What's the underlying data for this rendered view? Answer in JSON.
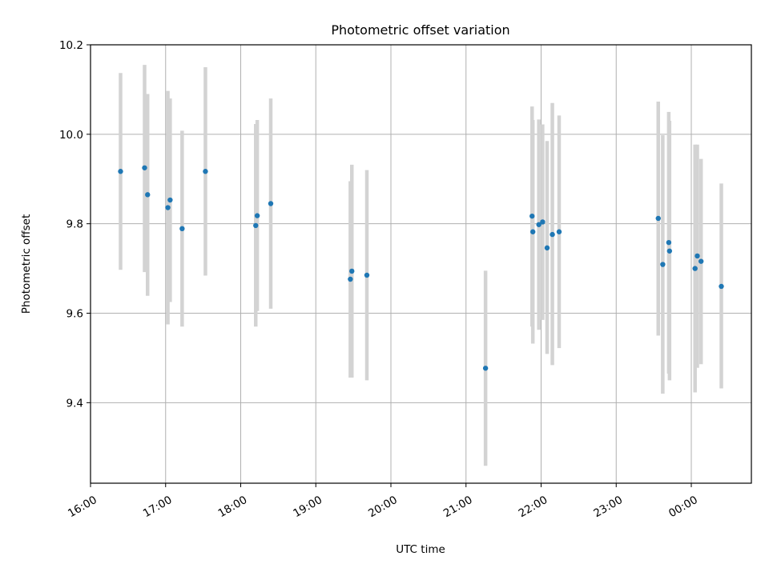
{
  "chart_data": {
    "type": "scatter",
    "title": "Photometric offset variation",
    "xlabel": "UTC time",
    "ylabel": "Photometric offset",
    "x_ticks": [
      "16:00",
      "17:00",
      "18:00",
      "19:00",
      "20:00",
      "21:00",
      "22:00",
      "23:00",
      "00:00"
    ],
    "x_tick_hours": [
      16,
      17,
      18,
      19,
      20,
      21,
      22,
      23,
      24
    ],
    "xlim_hours": [
      16.0,
      24.8
    ],
    "y_ticks": [
      "9.4",
      "9.6",
      "9.8",
      "10.0",
      "10.2"
    ],
    "y_tick_values": [
      9.4,
      9.6,
      9.8,
      10.0,
      10.2
    ],
    "ylim": [
      9.22,
      10.2
    ],
    "grid": true,
    "marker_color": "#1f77b4",
    "errorbar_color": "#d3d3d3",
    "series": [
      {
        "points": [
          {
            "t": 16.4,
            "y": 9.917,
            "lo": 9.697,
            "hi": 10.137
          },
          {
            "t": 16.72,
            "y": 9.925,
            "lo": 9.692,
            "hi": 10.155
          },
          {
            "t": 16.76,
            "y": 9.865,
            "lo": 9.639,
            "hi": 10.09
          },
          {
            "t": 17.03,
            "y": 9.836,
            "lo": 9.575,
            "hi": 10.097
          },
          {
            "t": 17.06,
            "y": 9.853,
            "lo": 9.625,
            "hi": 10.08
          },
          {
            "t": 17.22,
            "y": 9.789,
            "lo": 9.57,
            "hi": 10.008
          },
          {
            "t": 17.53,
            "y": 9.917,
            "lo": 9.684,
            "hi": 10.15
          },
          {
            "t": 18.2,
            "y": 9.796,
            "lo": 9.57,
            "hi": 10.023
          },
          {
            "t": 18.22,
            "y": 9.818,
            "lo": 9.605,
            "hi": 10.032
          },
          {
            "t": 18.4,
            "y": 9.845,
            "lo": 9.61,
            "hi": 10.08
          },
          {
            "t": 19.46,
            "y": 9.676,
            "lo": 9.456,
            "hi": 9.895
          },
          {
            "t": 19.48,
            "y": 9.694,
            "lo": 9.456,
            "hi": 9.932
          },
          {
            "t": 19.68,
            "y": 9.685,
            "lo": 9.45,
            "hi": 9.92
          },
          {
            "t": 21.26,
            "y": 9.477,
            "lo": 9.259,
            "hi": 9.695
          },
          {
            "t": 21.88,
            "y": 9.817,
            "lo": 9.57,
            "hi": 10.062
          },
          {
            "t": 21.89,
            "y": 9.782,
            "lo": 9.532,
            "hi": 10.032
          },
          {
            "t": 21.97,
            "y": 9.798,
            "lo": 9.563,
            "hi": 10.033
          },
          {
            "t": 22.02,
            "y": 9.804,
            "lo": 9.585,
            "hi": 10.022
          },
          {
            "t": 22.08,
            "y": 9.746,
            "lo": 9.509,
            "hi": 9.985
          },
          {
            "t": 22.15,
            "y": 9.776,
            "lo": 9.484,
            "hi": 10.07
          },
          {
            "t": 22.24,
            "y": 9.782,
            "lo": 9.522,
            "hi": 10.042
          },
          {
            "t": 23.56,
            "y": 9.812,
            "lo": 9.55,
            "hi": 10.073
          },
          {
            "t": 23.62,
            "y": 9.709,
            "lo": 9.42,
            "hi": 9.998
          },
          {
            "t": 23.7,
            "y": 9.758,
            "lo": 9.465,
            "hi": 10.05
          },
          {
            "t": 23.71,
            "y": 9.739,
            "lo": 9.45,
            "hi": 10.03
          },
          {
            "t": 24.05,
            "y": 9.7,
            "lo": 9.423,
            "hi": 9.977
          },
          {
            "t": 24.08,
            "y": 9.728,
            "lo": 9.478,
            "hi": 9.977
          },
          {
            "t": 24.13,
            "y": 9.716,
            "lo": 9.486,
            "hi": 9.945
          },
          {
            "t": 24.4,
            "y": 9.66,
            "lo": 9.432,
            "hi": 9.89
          }
        ]
      }
    ]
  }
}
